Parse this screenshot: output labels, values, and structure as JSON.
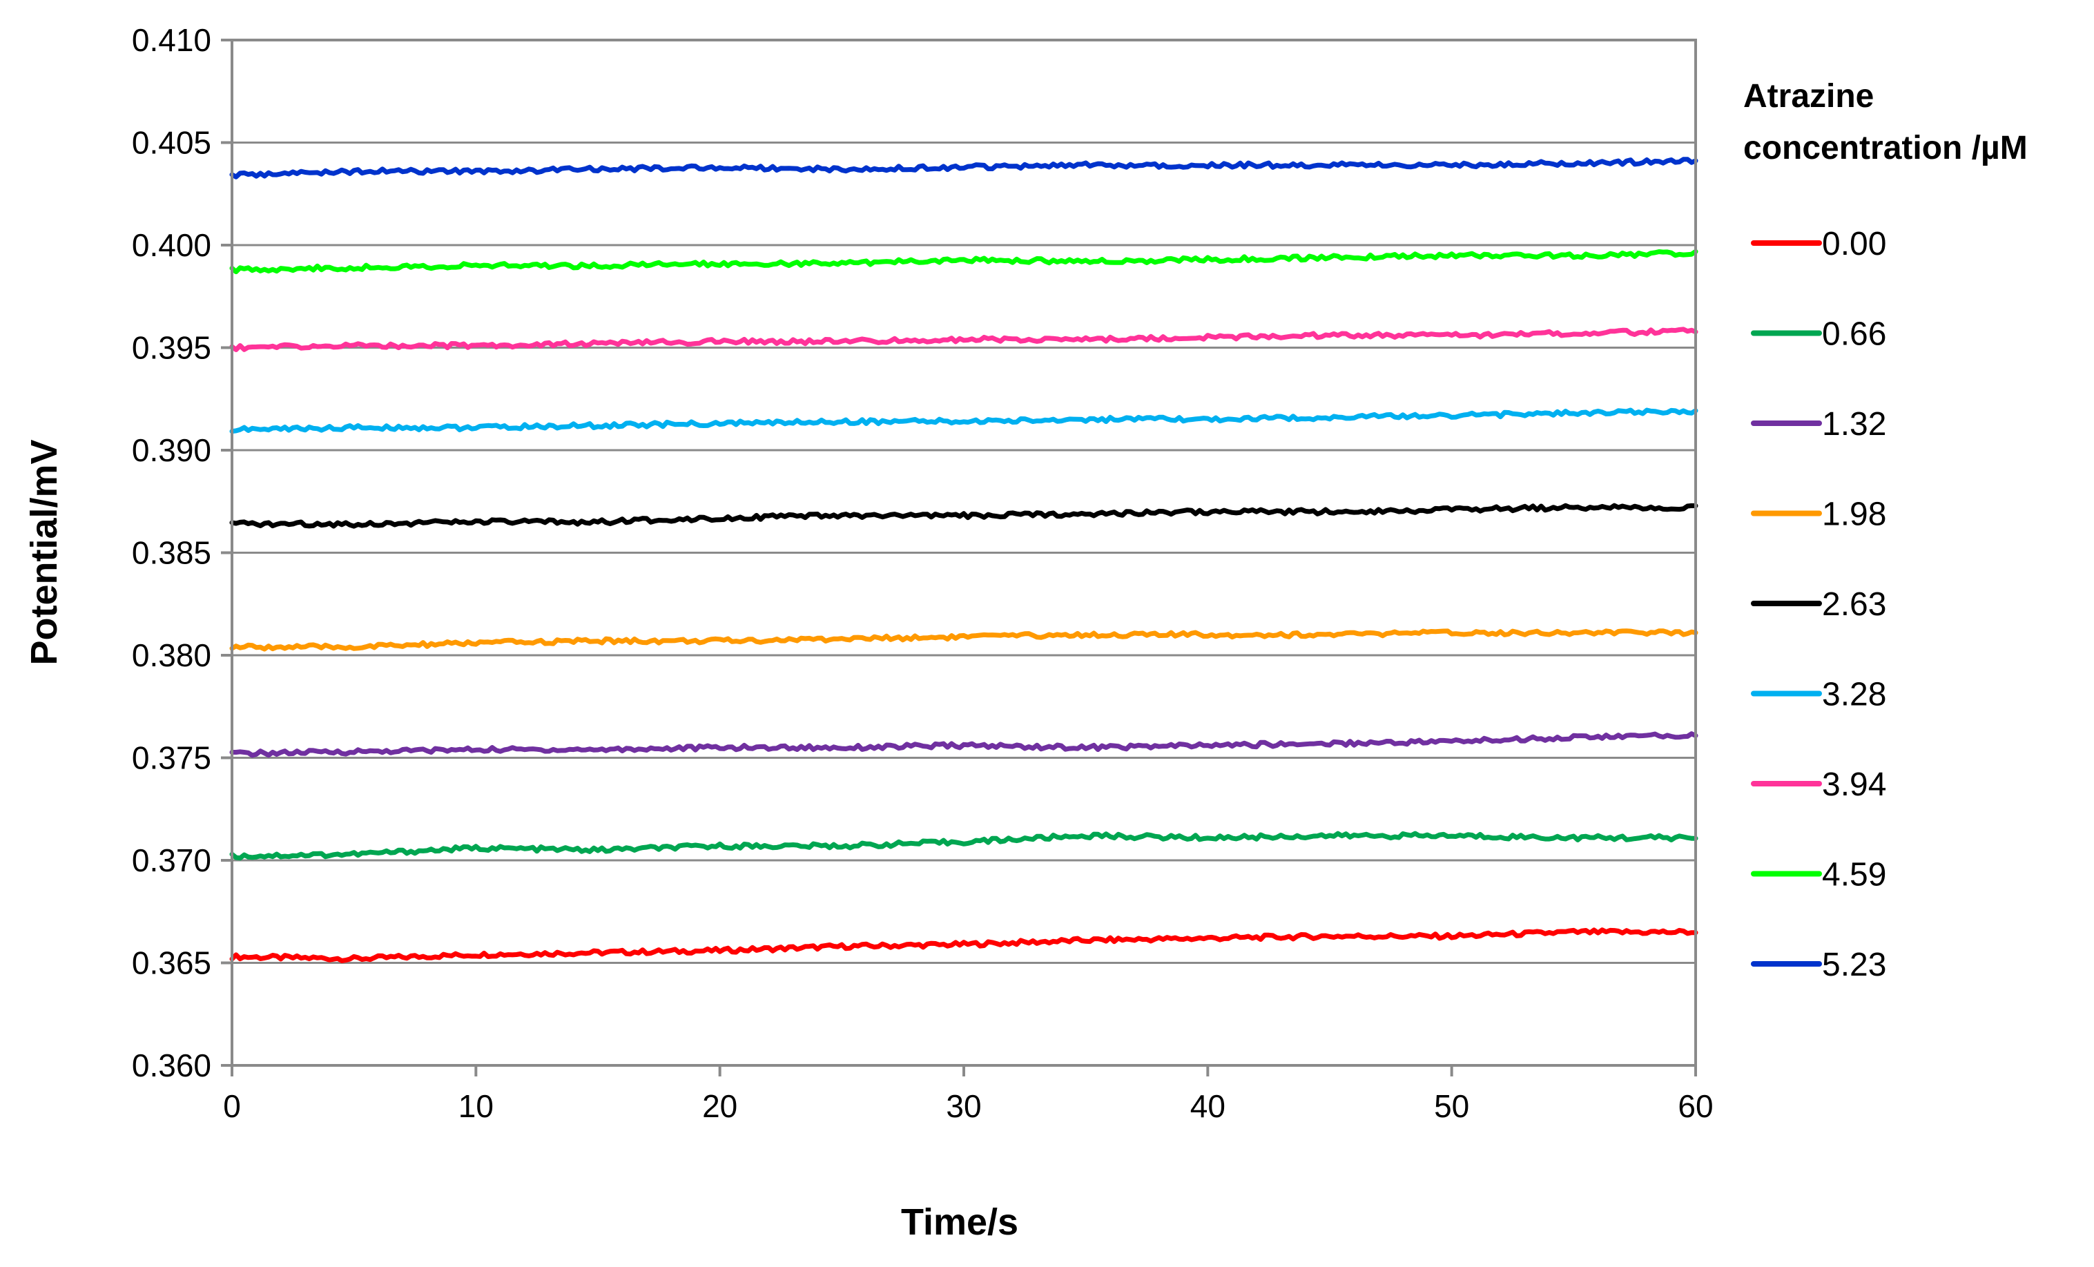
{
  "chart_data": {
    "type": "line",
    "title": "",
    "xlabel": "Time/s",
    "ylabel": "Potential/mV",
    "xlim": [
      0,
      60
    ],
    "ylim": [
      0.36,
      0.41
    ],
    "xticks": [
      0,
      10,
      20,
      30,
      40,
      50,
      60
    ],
    "xtick_labels": [
      "0",
      "10",
      "20",
      "30",
      "40",
      "50",
      "60"
    ],
    "yticks": [
      0.36,
      0.365,
      0.37,
      0.375,
      0.38,
      0.385,
      0.39,
      0.395,
      0.4,
      0.405,
      0.41
    ],
    "ytick_labels": [
      "0.360",
      "0.365",
      "0.370",
      "0.375",
      "0.380",
      "0.385",
      "0.390",
      "0.395",
      "0.400",
      "0.405",
      "0.410"
    ],
    "grid": "horizontal",
    "legend": {
      "title_lines": [
        "Atrazine",
        "concentration /µM"
      ],
      "position": "right"
    },
    "x": [
      0,
      5,
      10,
      15,
      20,
      25,
      30,
      35,
      40,
      45,
      50,
      55,
      60
    ],
    "series": [
      {
        "name": "0.00",
        "color": "#ff0000",
        "values": [
          0.3653,
          0.3652,
          0.3654,
          0.3655,
          0.3656,
          0.3658,
          0.3659,
          0.3661,
          0.3662,
          0.3663,
          0.3663,
          0.3665,
          0.3665
        ]
      },
      {
        "name": "0.66",
        "color": "#00a651",
        "values": [
          0.3702,
          0.3703,
          0.3706,
          0.3705,
          0.3707,
          0.3707,
          0.3709,
          0.3712,
          0.3711,
          0.3712,
          0.3712,
          0.3711,
          0.3711
        ]
      },
      {
        "name": "1.32",
        "color": "#7030a0",
        "values": [
          0.3752,
          0.3753,
          0.3754,
          0.3754,
          0.3755,
          0.3755,
          0.3756,
          0.3755,
          0.3756,
          0.3757,
          0.3758,
          0.376,
          0.3761
        ]
      },
      {
        "name": "1.98",
        "color": "#ff9900",
        "values": [
          0.3804,
          0.3804,
          0.3806,
          0.3807,
          0.3807,
          0.3808,
          0.3809,
          0.381,
          0.381,
          0.381,
          0.3811,
          0.3811,
          0.3811
        ]
      },
      {
        "name": "2.63",
        "color": "#000000",
        "values": [
          0.3864,
          0.3864,
          0.3865,
          0.3865,
          0.3867,
          0.3868,
          0.3868,
          0.3869,
          0.387,
          0.387,
          0.3871,
          0.3872,
          0.3872
        ]
      },
      {
        "name": "3.28",
        "color": "#00b0f0",
        "values": [
          0.391,
          0.3911,
          0.3911,
          0.3912,
          0.3913,
          0.3914,
          0.3914,
          0.3915,
          0.3915,
          0.3916,
          0.3917,
          0.3918,
          0.3919
        ]
      },
      {
        "name": "3.94",
        "color": "#ff3399",
        "values": [
          0.395,
          0.3951,
          0.3951,
          0.3952,
          0.3953,
          0.3953,
          0.3954,
          0.3954,
          0.3955,
          0.3956,
          0.3956,
          0.3957,
          0.3958
        ]
      },
      {
        "name": "4.59",
        "color": "#00ff00",
        "values": [
          0.3988,
          0.3989,
          0.399,
          0.399,
          0.3991,
          0.3991,
          0.3993,
          0.3992,
          0.3993,
          0.3994,
          0.3995,
          0.3995,
          0.3996
        ]
      },
      {
        "name": "5.23",
        "color": "#0033cc",
        "values": [
          0.4034,
          0.4036,
          0.4036,
          0.4037,
          0.4038,
          0.4037,
          0.4038,
          0.4039,
          0.4039,
          0.4039,
          0.4039,
          0.404,
          0.4041
        ]
      }
    ]
  }
}
